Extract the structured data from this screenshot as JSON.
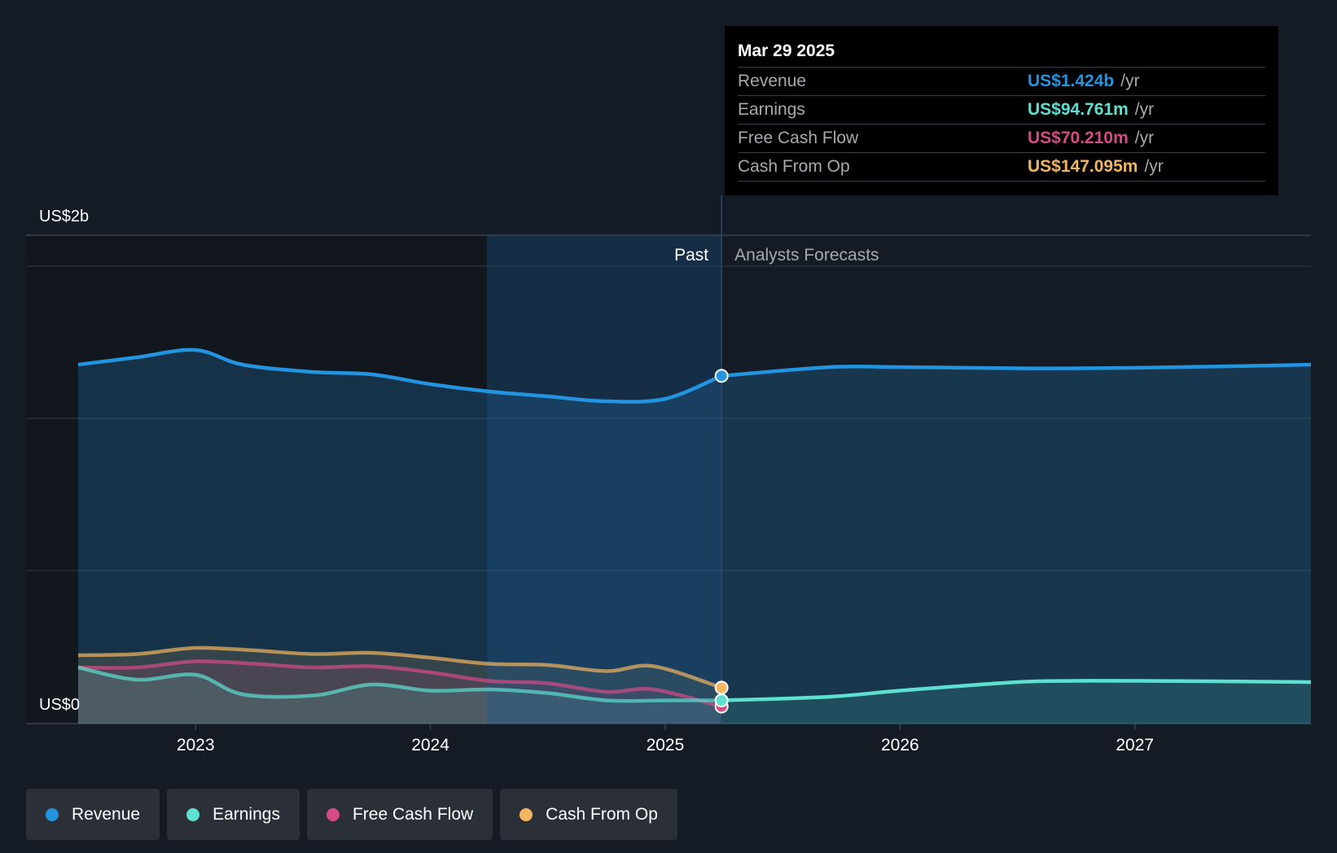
{
  "colors": {
    "revenue": "#2394df",
    "earnings": "#5ee0d0",
    "free_cash_flow": "#d64b87",
    "cash_from_op": "#f2b560"
  },
  "tooltip": {
    "date": "Mar 29 2025",
    "rows": [
      {
        "label": "Revenue",
        "value": "US$1.424b",
        "unit": "/yr"
      },
      {
        "label": "Earnings",
        "value": "US$94.761m",
        "unit": "/yr"
      },
      {
        "label": "Free Cash Flow",
        "value": "US$70.210m",
        "unit": "/yr"
      },
      {
        "label": "Cash From Op",
        "value": "US$147.095m",
        "unit": "/yr"
      }
    ]
  },
  "legend": [
    {
      "label": "Revenue",
      "color": "#2394df"
    },
    {
      "label": "Earnings",
      "color": "#5ee0d0"
    },
    {
      "label": "Free Cash Flow",
      "color": "#d64b87"
    },
    {
      "label": "Cash From Op",
      "color": "#f2b560"
    }
  ],
  "chart_data": {
    "type": "area",
    "y_axis_labels": {
      "top": "US$2b",
      "bottom": "US$0"
    },
    "ylim": [
      0,
      2.0
    ],
    "xlim": [
      2022.5,
      2027.75
    ],
    "x_ticks": [
      2023,
      2024,
      2025,
      2026,
      2027
    ],
    "x_tick_labels": [
      "2023",
      "2024",
      "2025",
      "2026",
      "2027"
    ],
    "grid": true,
    "past_label": "Past",
    "forecast_label": "Analysts Forecasts",
    "divider_x": 2025.24,
    "highlight_start_x": 2024.24,
    "series": [
      {
        "name": "Revenue",
        "key": "revenue",
        "past": [
          [
            2022.5,
            1.47
          ],
          [
            2022.75,
            1.5
          ],
          [
            2023.0,
            1.53
          ],
          [
            2023.2,
            1.47
          ],
          [
            2023.5,
            1.44
          ],
          [
            2023.75,
            1.43
          ],
          [
            2024.0,
            1.39
          ],
          [
            2024.25,
            1.36
          ],
          [
            2024.5,
            1.34
          ],
          [
            2024.75,
            1.32
          ],
          [
            2025.0,
            1.33
          ],
          [
            2025.24,
            1.424
          ]
        ],
        "forecast": [
          [
            2025.24,
            1.424
          ],
          [
            2025.7,
            1.46
          ],
          [
            2026.0,
            1.46
          ],
          [
            2026.5,
            1.455
          ],
          [
            2026.75,
            1.455
          ],
          [
            2027.0,
            1.457
          ],
          [
            2027.5,
            1.465
          ],
          [
            2027.75,
            1.47
          ]
        ]
      },
      {
        "name": "Cash From Op",
        "key": "cash_from_op",
        "past": [
          [
            2022.5,
            0.28
          ],
          [
            2022.75,
            0.285
          ],
          [
            2023.0,
            0.31
          ],
          [
            2023.25,
            0.3
          ],
          [
            2023.5,
            0.285
          ],
          [
            2023.75,
            0.29
          ],
          [
            2024.0,
            0.27
          ],
          [
            2024.25,
            0.245
          ],
          [
            2024.5,
            0.24
          ],
          [
            2024.75,
            0.215
          ],
          [
            2024.95,
            0.235
          ],
          [
            2025.24,
            0.147
          ]
        ],
        "forecast": []
      },
      {
        "name": "Free Cash Flow",
        "key": "free_cash_flow",
        "past": [
          [
            2022.5,
            0.23
          ],
          [
            2022.75,
            0.23
          ],
          [
            2023.0,
            0.255
          ],
          [
            2023.25,
            0.245
          ],
          [
            2023.5,
            0.23
          ],
          [
            2023.75,
            0.235
          ],
          [
            2024.0,
            0.21
          ],
          [
            2024.25,
            0.175
          ],
          [
            2024.5,
            0.165
          ],
          [
            2024.75,
            0.13
          ],
          [
            2024.95,
            0.14
          ],
          [
            2025.24,
            0.07
          ]
        ],
        "forecast": []
      },
      {
        "name": "Earnings",
        "key": "earnings",
        "past": [
          [
            2022.5,
            0.23
          ],
          [
            2022.75,
            0.18
          ],
          [
            2023.0,
            0.2
          ],
          [
            2023.2,
            0.12
          ],
          [
            2023.5,
            0.115
          ],
          [
            2023.75,
            0.16
          ],
          [
            2024.0,
            0.135
          ],
          [
            2024.25,
            0.14
          ],
          [
            2024.5,
            0.125
          ],
          [
            2024.75,
            0.095
          ],
          [
            2025.0,
            0.095
          ],
          [
            2025.24,
            0.095
          ]
        ],
        "forecast": [
          [
            2025.24,
            0.095
          ],
          [
            2025.7,
            0.11
          ],
          [
            2026.0,
            0.135
          ],
          [
            2026.5,
            0.17
          ],
          [
            2026.75,
            0.175
          ],
          [
            2027.0,
            0.175
          ],
          [
            2027.5,
            0.172
          ],
          [
            2027.75,
            0.17
          ]
        ]
      }
    ]
  }
}
